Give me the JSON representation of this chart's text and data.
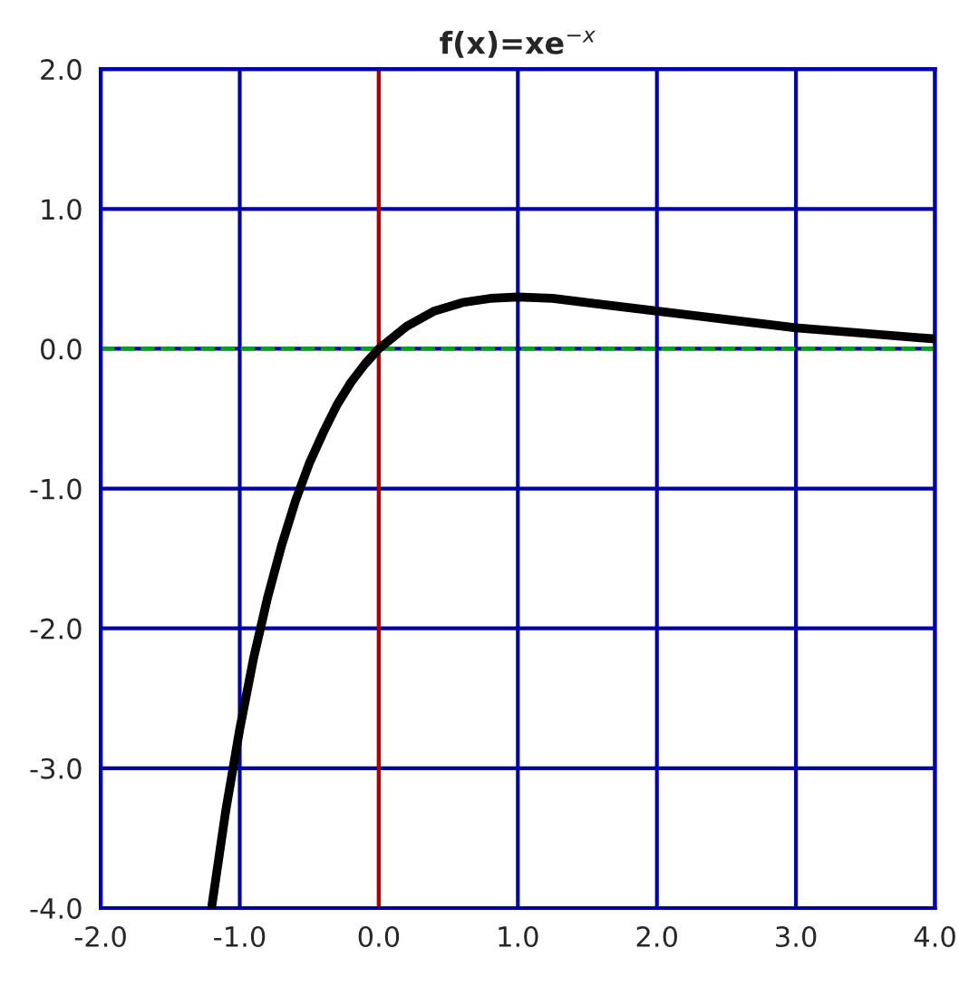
{
  "chart_data": {
    "type": "line",
    "title": "f(x)=xe$^{−x}$",
    "x": [
      -1.2,
      -1.1,
      -1.0,
      -0.9,
      -0.8,
      -0.7,
      -0.6,
      -0.5,
      -0.4,
      -0.3,
      -0.2,
      -0.1,
      0.0,
      0.2,
      0.4,
      0.6,
      0.8,
      1.0,
      1.25,
      1.5,
      2.0,
      2.5,
      3.0,
      3.5,
      4.0
    ],
    "series": [
      {
        "color": "#000000",
        "values": [
          -3.98,
          -3.3,
          -2.72,
          -2.21,
          -1.78,
          -1.41,
          -1.09,
          -0.82,
          -0.6,
          -0.4,
          -0.24,
          -0.11,
          0.0,
          0.16,
          0.27,
          0.33,
          0.36,
          0.37,
          0.36,
          0.33,
          0.27,
          0.21,
          0.15,
          0.11,
          0.07
        ]
      }
    ],
    "xlim": [
      -2,
      4
    ],
    "ylim": [
      -4,
      2
    ],
    "xticks": [
      {
        "value": -2,
        "label": "-2.0"
      },
      {
        "value": -1,
        "label": "-1.0"
      },
      {
        "value": 0,
        "label": "0.0"
      },
      {
        "value": 1,
        "label": "1.0"
      },
      {
        "value": 2,
        "label": "2.0"
      },
      {
        "value": 3,
        "label": "3.0"
      },
      {
        "value": 4,
        "label": "4.0"
      }
    ],
    "yticks": [
      {
        "value": -4,
        "label": "-4.0"
      },
      {
        "value": -3,
        "label": "-3.0"
      },
      {
        "value": -2,
        "label": "-2.0"
      },
      {
        "value": -1,
        "label": "-1.0"
      },
      {
        "value": 0,
        "label": "0.0"
      },
      {
        "value": 1,
        "label": "1.0"
      },
      {
        "value": 2,
        "label": "2.0"
      }
    ],
    "ref_lines": [
      {
        "axis": "x",
        "value": 0,
        "color": "#aa0000",
        "line_style": "solid"
      },
      {
        "axis": "y",
        "value": 0,
        "color": "#00aa00",
        "line_style": "dashed"
      }
    ],
    "grid": true,
    "marker": "none",
    "line_style": "solid"
  }
}
